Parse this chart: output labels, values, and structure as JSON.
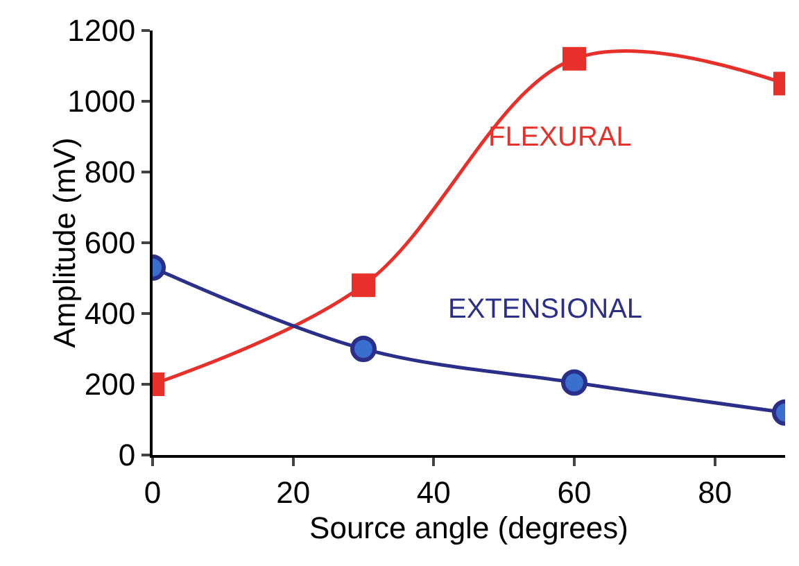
{
  "chart_data": {
    "type": "line",
    "xlabel": "Source angle (degrees)",
    "ylabel": "Amplitude (mV)",
    "x": [
      0,
      30,
      60,
      90
    ],
    "series": [
      {
        "name": "FLEXURAL",
        "color": "#e8302a",
        "marker": "square",
        "values": [
          200,
          480,
          1120,
          1050
        ]
      },
      {
        "name": "EXTENSIONAL",
        "color": "#2b2f8a",
        "marker": "circle",
        "values": [
          530,
          300,
          205,
          120
        ]
      }
    ],
    "xlim": [
      0,
      90
    ],
    "xticks": [
      0,
      20,
      40,
      60,
      80
    ],
    "ylim": [
      0,
      1200
    ],
    "yticks": [
      0,
      200,
      400,
      600,
      800,
      1000,
      1200
    ],
    "grid": false,
    "legend": false
  }
}
